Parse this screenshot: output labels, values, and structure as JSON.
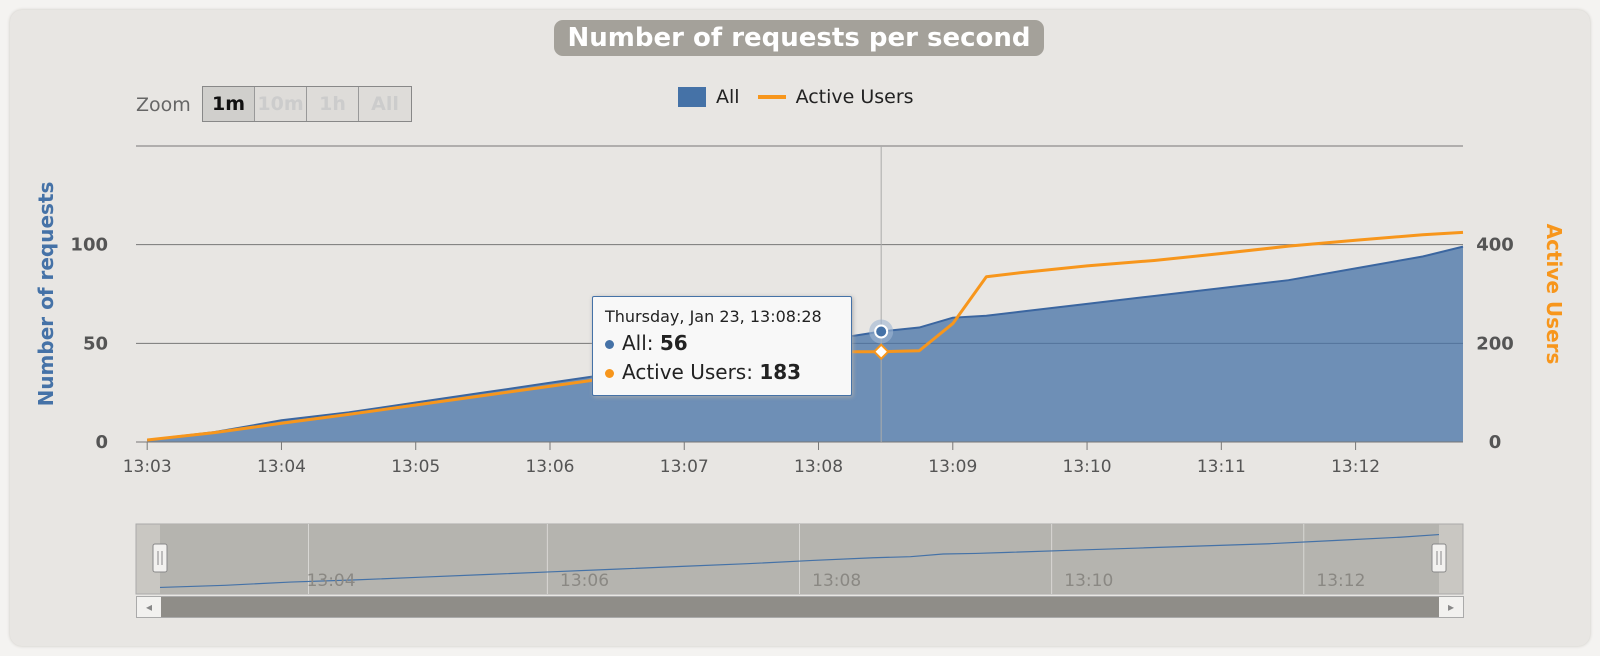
{
  "title": "Number of requests per second",
  "zoom": {
    "label": "Zoom",
    "buttons": [
      "1m",
      "10m",
      "1h",
      "All"
    ],
    "active": "1m"
  },
  "legend": [
    {
      "name": "All",
      "color": "#4572a7",
      "kind": "area"
    },
    {
      "name": "Active Users",
      "color": "#f7961c",
      "kind": "line"
    }
  ],
  "tooltip": {
    "header": "Thursday, Jan 23, 13:08:28",
    "rows": [
      {
        "label": "All: ",
        "value": "56",
        "color": "#4572a7"
      },
      {
        "label": "Active Users: ",
        "value": "183",
        "color": "#f7961c"
      }
    ]
  },
  "navigator": {
    "tick_labels": [
      "13:04",
      "13:06",
      "13:08",
      "13:10",
      "13:12"
    ]
  },
  "chart_data": {
    "type": "area",
    "title": "Number of requests per second",
    "x_axis": {
      "type": "time",
      "tick_labels": [
        "13:03",
        "13:04",
        "13:05",
        "13:06",
        "13:07",
        "13:08",
        "13:09",
        "13:10",
        "13:11",
        "13:12"
      ],
      "range": [
        "13:03",
        "13:12:48"
      ]
    },
    "y_axis_left": {
      "label": "Number of requests",
      "tick_labels": [
        "0",
        "50",
        "100"
      ],
      "range": [
        0,
        150
      ]
    },
    "y_axis_right": {
      "label": "Active Users",
      "tick_labels": [
        "0",
        "200",
        "400"
      ],
      "range": [
        0,
        600
      ]
    },
    "grid": true,
    "legend_position": "top-center",
    "x": [
      "13:03:00",
      "13:03:30",
      "13:04:00",
      "13:04:30",
      "13:05:00",
      "13:05:30",
      "13:06:00",
      "13:06:30",
      "13:07:00",
      "13:07:30",
      "13:08:00",
      "13:08:28",
      "13:08:45",
      "13:09:00",
      "13:09:15",
      "13:09:30",
      "13:10:00",
      "13:10:30",
      "13:11:00",
      "13:11:30",
      "13:12:00",
      "13:12:30",
      "13:12:48"
    ],
    "series": [
      {
        "name": "All",
        "type": "area",
        "axis": "left",
        "color": "#4572a7",
        "values": [
          1,
          5,
          11,
          15,
          20,
          25,
          30,
          35,
          40,
          45,
          51,
          56,
          58,
          63,
          64,
          66,
          70,
          74,
          78,
          82,
          88,
          94,
          99
        ]
      },
      {
        "name": "Active Users",
        "type": "line",
        "axis": "right",
        "color": "#f7961c",
        "values": [
          4,
          19,
          38,
          56,
          75,
          94,
          113,
          132,
          150,
          169,
          183,
          183,
          185,
          240,
          335,
          343,
          357,
          368,
          382,
          397,
          409,
          420,
          425
        ]
      }
    ],
    "crosshair_x": "13:08:28"
  }
}
